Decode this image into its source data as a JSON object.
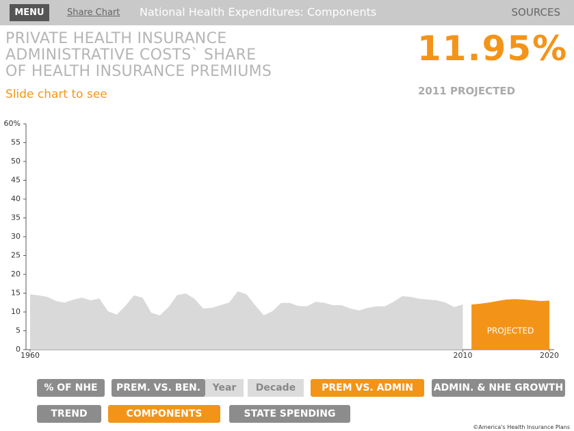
{
  "topbar": {
    "menu": "MENU",
    "share": "Share Chart",
    "title": "National Health Expenditures: Components",
    "sources": "SOURCES"
  },
  "heading": {
    "title_lines": [
      "PRIVATE HEALTH INSURANCE",
      "ADMINISTRATIVE COSTS` SHARE",
      "OF HEALTH INSURANCE PREMIUMS"
    ],
    "hint": "Slide chart to see"
  },
  "headline": {
    "value": "11.95%",
    "caption": "2011 PROJECTED"
  },
  "chart_data": {
    "type": "area",
    "series": [
      {
        "color": "#d9d9d9",
        "x": [
          1960,
          1961,
          1962,
          1963,
          1964,
          1965,
          1966,
          1967,
          1968,
          1969,
          1970,
          1971,
          1972,
          1973,
          1974,
          1975,
          1976,
          1977,
          1978,
          1979,
          1980,
          1981,
          1982,
          1983,
          1984,
          1985,
          1986,
          1987,
          1988,
          1989,
          1990,
          1991,
          1992,
          1993,
          1994,
          1995,
          1996,
          1997,
          1998,
          1999,
          2000,
          2001,
          2002,
          2003,
          2004,
          2005,
          2006,
          2007,
          2008,
          2009,
          2010
        ],
        "values": [
          14.7,
          14.4,
          14.0,
          12.9,
          12.5,
          13.3,
          13.8,
          13.1,
          13.6,
          10.2,
          9.3,
          11.6,
          14.4,
          13.8,
          9.8,
          9.1,
          11.3,
          14.5,
          14.9,
          13.5,
          10.9,
          11.1,
          11.8,
          12.5,
          15.5,
          14.7,
          11.8,
          9.1,
          10.2,
          12.4,
          12.4,
          11.6,
          11.5,
          12.7,
          12.4,
          11.8,
          11.8,
          10.9,
          10.4,
          11.1,
          11.5,
          11.5,
          12.7,
          14.2,
          14.0,
          13.5,
          13.3,
          13.1,
          12.5,
          11.3,
          12.0
        ]
      },
      {
        "name": "PROJECTED",
        "color": "#f39419",
        "x": [
          2011,
          2012,
          2013,
          2014,
          2015,
          2016,
          2017,
          2018,
          2019,
          2020
        ],
        "values": [
          11.95,
          12.2,
          12.5,
          12.9,
          13.3,
          13.4,
          13.3,
          13.1,
          12.9,
          13.0
        ]
      }
    ],
    "xlim": [
      1960,
      2020
    ],
    "xticks": [
      1960,
      2010,
      2020
    ],
    "ylim": [
      0,
      60
    ],
    "yticks": [
      0,
      5,
      10,
      15,
      20,
      25,
      30,
      35,
      40,
      45,
      50,
      55,
      {
        "value": 60,
        "label": "60%"
      }
    ]
  },
  "nav": {
    "row1": [
      "% OF NHE",
      "PREM. VS. BEN.",
      "Year",
      "Decade",
      "PREM VS. ADMIN",
      "ADMIN. & NHE GROWTH"
    ],
    "row2": [
      "TREND",
      "COMPONENTS",
      "STATE SPENDING"
    ]
  },
  "footer": "©America's Health Insurance Plans"
}
